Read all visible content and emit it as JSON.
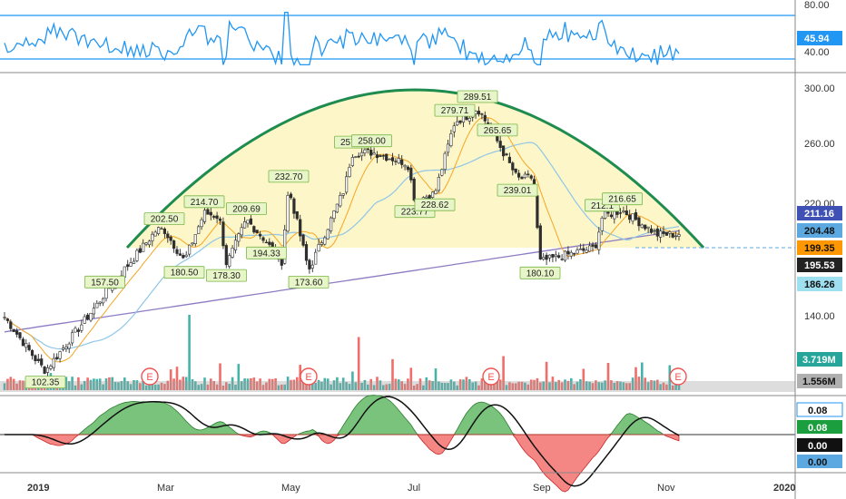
{
  "colors": {
    "background": "#ffffff",
    "up": "#26a69a",
    "down": "#ef5350",
    "candle": "#2e2e2e",
    "arc": "#1e8c4e",
    "arc_fill": "#fdf6c8",
    "rsi": "#2196f3",
    "ma_fast": "#f5a623",
    "ma_mid": "#8fc6e8",
    "ma_slow": "#8e7cc3",
    "macd_pos": "#4caf50",
    "macd_neg": "#ef5350",
    "signal": "#111111",
    "label_box": "#e8f5c8",
    "label_border": "#7ab648"
  },
  "panels": {
    "rsi": {
      "axis_labels": [
        "80.00",
        "40.00"
      ],
      "current_value": "45.94",
      "levels": [
        70,
        30
      ]
    },
    "price": {
      "axis_labels": [
        "300.00",
        "260.00",
        "220.00",
        "140.00"
      ],
      "yrange": [
        95,
        305
      ]
    },
    "macd": {
      "axis_labels": [
        "0.08",
        "0.08",
        "0.00",
        "0.00"
      ]
    },
    "xaxis": {
      "labels": [
        "2019",
        "Mar",
        "May",
        "Jul",
        "Sep",
        "Nov",
        "2020"
      ]
    }
  },
  "price_tags": [
    {
      "text": "211.16",
      "bg": "#3f51b5",
      "fg": "#ffffff"
    },
    {
      "text": "204.48",
      "bg": "#5ba9e0",
      "fg": "#111111"
    },
    {
      "text": "199.35",
      "bg": "#ff9800",
      "fg": "#111111"
    },
    {
      "text": "195.53",
      "bg": "#222222",
      "fg": "#ffffff"
    },
    {
      "text": "186.26",
      "bg": "#9ee0f0",
      "fg": "#111111"
    }
  ],
  "volume_tags": [
    {
      "text": "3.719M",
      "bg": "#26a69a",
      "fg": "#ffffff"
    },
    {
      "text": "1.556M",
      "bg": "#b0b0b0",
      "fg": "#111111"
    }
  ],
  "earnings_marker": "E",
  "chart_data": {
    "type": "candlestick",
    "x": [
      "Dec 2018",
      "Jan 2019",
      "Feb 2019",
      "Mar 2019",
      "Apr 2019",
      "May 2019",
      "Jun 2019",
      "Jul 2019",
      "Aug 2019",
      "Sep 2019",
      "Oct 2019",
      "Nov 2019"
    ],
    "close": [
      145,
      108,
      150,
      203,
      212,
      178,
      232,
      250,
      285,
      240,
      190,
      199.35
    ],
    "annotations": [
      {
        "text": "102.35",
        "x": "Jan 2019",
        "y": 102.35,
        "side": "below"
      },
      {
        "text": "157.50",
        "x": "Feb 2019",
        "y": 157.5,
        "side": "above"
      },
      {
        "text": "202.50",
        "x": "Mar 2019",
        "y": 202.5,
        "side": "above"
      },
      {
        "text": "180.50",
        "x": "Mar 2019",
        "y": 180.5,
        "side": "below"
      },
      {
        "text": "214.70",
        "x": "Mar 2019",
        "y": 214.7,
        "side": "above"
      },
      {
        "text": "178.30",
        "x": "Apr 2019",
        "y": 178.3,
        "side": "below"
      },
      {
        "text": "209.69",
        "x": "Apr 2019",
        "y": 209.69,
        "side": "above"
      },
      {
        "text": "194.33",
        "x": "Apr 2019",
        "y": 194.33,
        "side": "below"
      },
      {
        "text": "232.70",
        "x": "May 2019",
        "y": 232.7,
        "side": "above"
      },
      {
        "text": "173.60",
        "x": "May 2019",
        "y": 173.6,
        "side": "below"
      },
      {
        "text": "257.1",
        "x": "Jun 2019",
        "y": 257.1,
        "side": "above"
      },
      {
        "text": "258.00",
        "x": "Jun 2019",
        "y": 258.0,
        "side": "above"
      },
      {
        "text": "223.77",
        "x": "Jul 2019",
        "y": 223.77,
        "side": "below"
      },
      {
        "text": "228.62",
        "x": "Jul 2019",
        "y": 228.62,
        "side": "below"
      },
      {
        "text": "279.71",
        "x": "Jul 2019",
        "y": 279.71,
        "side": "above"
      },
      {
        "text": "289.51",
        "x": "Aug 2019",
        "y": 289.51,
        "side": "above"
      },
      {
        "text": "265.65",
        "x": "Aug 2019",
        "y": 265.65,
        "side": "above"
      },
      {
        "text": "239.01",
        "x": "Aug 2019",
        "y": 239.01,
        "side": "below"
      },
      {
        "text": "180.10",
        "x": "Sep 2019",
        "y": 180.1,
        "side": "below"
      },
      {
        "text": "212.1",
        "x": "Oct 2019",
        "y": 212.1,
        "side": "above"
      },
      {
        "text": "216.65",
        "x": "Oct 2019",
        "y": 216.65,
        "side": "above"
      }
    ],
    "current_price": 199.35,
    "ylim": [
      95,
      305
    ],
    "grid": false,
    "legend": "none"
  }
}
